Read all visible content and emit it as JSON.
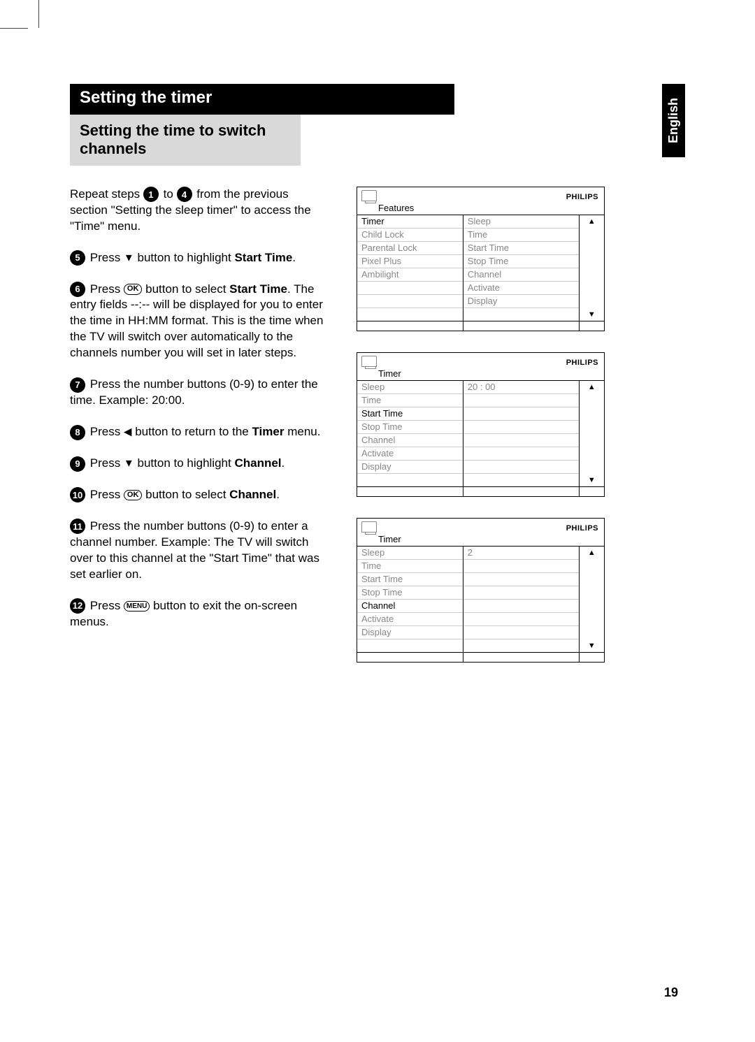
{
  "page_number": "19",
  "language_tab": "English",
  "title": "Setting the timer",
  "subtitle": "Setting the time to switch channels",
  "intro": {
    "pre": "Repeat steps ",
    "from": "1",
    "mid": " to ",
    "to": "4",
    "post": " from the previous section \"Setting the sleep timer\" to access the \"Time\" menu."
  },
  "steps": [
    {
      "num": "5",
      "pre": "Press ",
      "sym": "▼",
      "mid": " button to highlight ",
      "bold": "Start Time",
      "post": "."
    },
    {
      "num": "6",
      "pre": "Press ",
      "btn": "OK",
      "mid": " button to select ",
      "bold": "Start Time",
      "post": ". The entry fields --:-- will be displayed for you to enter the time in HH:MM format.  This is the time when the TV will switch over automatically to the channels number you will set in later steps."
    },
    {
      "num": "7",
      "pre": "Press the number buttons (0-9) to enter the time.  Example: 20:00."
    },
    {
      "num": "8",
      "pre": "Press ",
      "sym": "◀",
      "mid": " button to return to the ",
      "bold": "Timer",
      "post": " menu."
    },
    {
      "num": "9",
      "pre": "Press ",
      "sym": "▼",
      "mid": " button to highlight ",
      "bold": "Channel",
      "post": "."
    },
    {
      "num": "10",
      "pre": "Press ",
      "btn": "OK",
      "mid": " button to select ",
      "bold": "Channel",
      "post": "."
    },
    {
      "num": "11",
      "pre": "Press the number buttons (0-9) to enter a channel number.  Example:  The TV will switch over to this channel at the \"Start Time\" that was set earlier on."
    },
    {
      "num": "12",
      "pre": "Press ",
      "btn": "MENU",
      "mid": " button to exit the on-screen menus."
    }
  ],
  "osd_brand": "PHILIPS",
  "osd1": {
    "title": "Features",
    "left": [
      "Timer",
      "Child Lock",
      "Parental Lock",
      "Pixel Plus",
      "Ambilight",
      "",
      "",
      ""
    ],
    "left_sel_index": 0,
    "right": [
      "Sleep",
      "Time",
      "Start Time",
      "Stop Time",
      "Channel",
      "Activate",
      "Display",
      ""
    ]
  },
  "osd2": {
    "title": "Timer",
    "left": [
      "Sleep",
      "Time",
      "Start Time",
      "Stop Time",
      "Channel",
      "Activate",
      "Display",
      ""
    ],
    "left_sel_index": 2,
    "right_value": "20 : 00",
    "right_value_row": 0
  },
  "osd3": {
    "title": "Timer",
    "left": [
      "Sleep",
      "Time",
      "Start Time",
      "Stop Time",
      "Channel",
      "Activate",
      "Display",
      ""
    ],
    "left_sel_index": 4,
    "right_value": "2",
    "right_value_row": 0
  },
  "colors": {
    "text": "#000000",
    "muted": "#888888",
    "bg": "#ffffff",
    "subtitle_bg": "#d9d9d9",
    "title_bg": "#000000"
  }
}
